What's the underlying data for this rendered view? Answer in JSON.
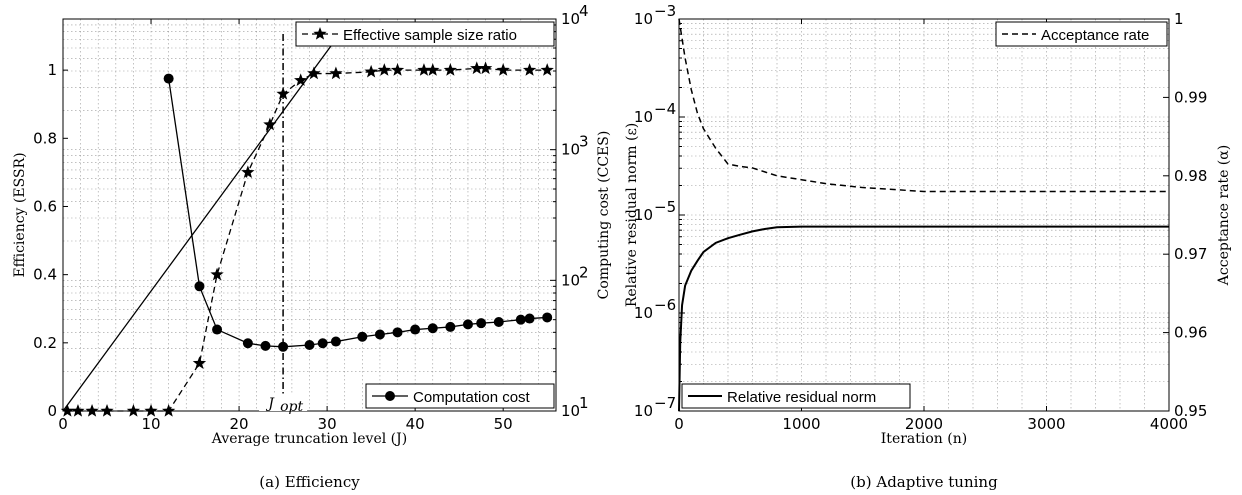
{
  "chart_data": [
    {
      "type": "line",
      "caption": "(a) Efficiency",
      "xlabel": "Average truncation level (J)",
      "ylabel_left": "Efficiency (ESSR)",
      "ylabel_right": "Computing cost (CCES)",
      "xlim": [
        0,
        56
      ],
      "ylim_left": [
        0,
        1.15
      ],
      "ylim_right": [
        10,
        10000
      ],
      "right_scale": "log",
      "xticks": [
        "0",
        "10",
        "20",
        "30",
        "40",
        "50"
      ],
      "yticks_left": [
        "0",
        "0.2",
        "0.4",
        "0.6",
        "0.8",
        "1"
      ],
      "yticks_right": [
        "10",
        "10",
        "10",
        "10"
      ],
      "yticks_right_exp": [
        "1",
        "2",
        "3",
        "4"
      ],
      "grid": true,
      "annotation": "J",
      "annotation_sub": "opt",
      "jopt": 25,
      "series": [
        {
          "name": "Effective sample size ratio",
          "axis": "left",
          "style": "dashed",
          "marker": "star",
          "x": [
            0.5,
            1.7,
            3.3,
            5,
            8,
            10,
            12,
            15.5,
            17.5,
            21,
            23.5,
            25,
            27,
            28.5,
            31,
            35,
            36.5,
            38,
            41,
            42,
            44,
            47,
            48,
            50,
            53,
            55
          ],
          "y": [
            0,
            0,
            0,
            0,
            0,
            0,
            0,
            0.14,
            0.4,
            0.7,
            0.84,
            0.93,
            0.97,
            0.99,
            0.99,
            0.995,
            1.0,
            1.0,
            1.0,
            1.0,
            1.0,
            1.005,
            1.005,
            1.0,
            1.0,
            1.0
          ]
        },
        {
          "name": "Computation cost",
          "axis": "right",
          "style": "solid",
          "marker": "circle",
          "x": [
            12,
            15.5,
            17.5,
            21,
            23,
            25,
            28,
            29.5,
            31,
            34,
            36,
            38,
            40,
            42,
            44,
            46,
            47.5,
            49.5,
            52,
            53,
            55
          ],
          "y": [
            3500,
            90,
            42,
            33,
            31.5,
            31,
            32,
            33,
            34,
            37,
            38.5,
            40,
            42,
            43,
            44,
            46,
            47,
            48,
            50,
            51,
            52
          ]
        },
        {
          "name": "",
          "axis": "right",
          "style": "solid",
          "marker": "none",
          "x": [
            0,
            31
          ],
          "y": [
            10,
            7000
          ]
        }
      ]
    },
    {
      "type": "line",
      "caption": "(b) Adaptive tuning",
      "xlabel": "Iteration (n)",
      "ylabel_left": "Relative residual norm (ε)",
      "ylabel_right": "Acceptance rate (α)",
      "xlim": [
        0,
        4000
      ],
      "ylim_left": [
        1e-07,
        0.001
      ],
      "left_scale": "log",
      "ylim_right": [
        0.95,
        1.0
      ],
      "xticks": [
        "0",
        "1000",
        "2000",
        "3000",
        "4000"
      ],
      "yticks_left": [
        "10",
        "10",
        "10",
        "10",
        "10"
      ],
      "yticks_left_exp": [
        "−7",
        "−6",
        "−5",
        "−4",
        "−3"
      ],
      "yticks_right": [
        "0.95",
        "0.96",
        "0.97",
        "0.98",
        "0.99",
        "1"
      ],
      "grid": true,
      "series": [
        {
          "name": "Acceptance rate",
          "axis": "right",
          "style": "dashed",
          "x": [
            0,
            20,
            50,
            100,
            150,
            200,
            300,
            400,
            500,
            600,
            700,
            800,
            1000,
            1200,
            1500,
            2000,
            2500,
            3000,
            3500,
            4000
          ],
          "y": [
            1.0,
            0.998,
            0.995,
            0.991,
            0.988,
            0.986,
            0.9835,
            0.9815,
            0.9812,
            0.981,
            0.9805,
            0.98,
            0.9795,
            0.979,
            0.9785,
            0.978,
            0.978,
            0.978,
            0.978,
            0.978
          ]
        },
        {
          "name": "Relative residual norm",
          "axis": "left",
          "style": "solid",
          "x": [
            0,
            10,
            25,
            50,
            100,
            150,
            200,
            300,
            400,
            500,
            600,
            700,
            800,
            1000,
            1500,
            2000,
            2500,
            3000,
            3500,
            4000
          ],
          "y": [
            1e-07,
            5e-07,
            1.2e-06,
            1.9e-06,
            2.7e-06,
            3.4e-06,
            4.2e-06,
            5.2e-06,
            5.8e-06,
            6.3e-06,
            6.8e-06,
            7.2e-06,
            7.5e-06,
            7.6e-06,
            7.6e-06,
            7.6e-06,
            7.6e-06,
            7.6e-06,
            7.6e-06,
            7.6e-06
          ]
        }
      ]
    }
  ]
}
